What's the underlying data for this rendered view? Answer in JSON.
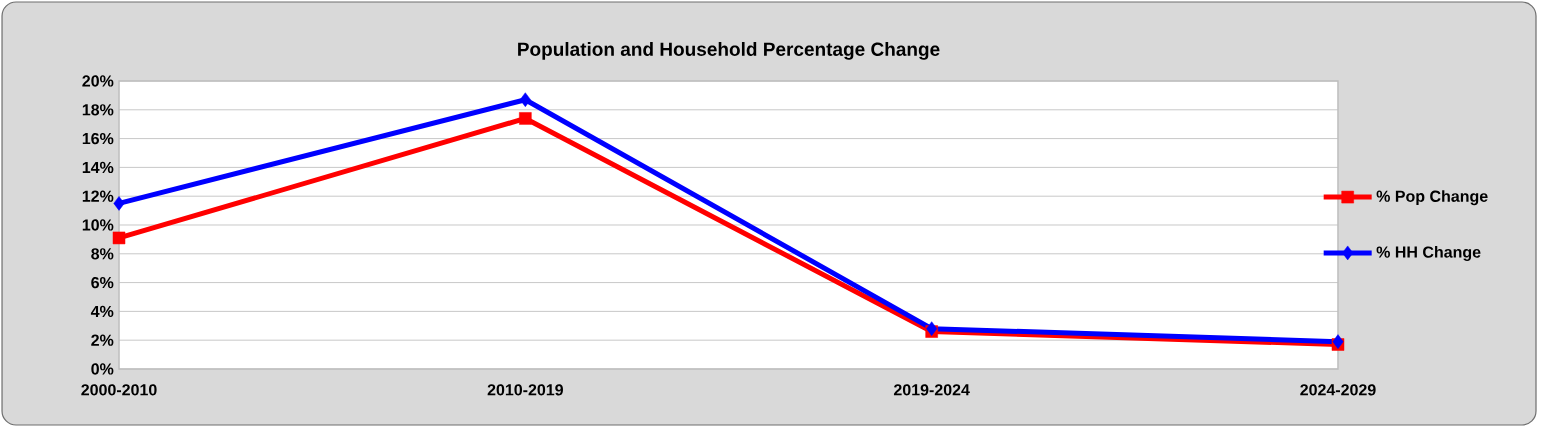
{
  "chart_data": {
    "type": "line",
    "title": "Population and Household Percentage Change",
    "categories": [
      "2000-2010",
      "2010-2019",
      "2019-2024",
      "2024-2029"
    ],
    "series": [
      {
        "name": "% Pop Change",
        "color": "#ff0000",
        "marker": "square",
        "values": [
          9.1,
          17.4,
          2.6,
          1.7
        ]
      },
      {
        "name": "% HH Change",
        "color": "#0000ff",
        "marker": "diamond",
        "values": [
          11.5,
          18.7,
          2.8,
          1.9
        ]
      }
    ],
    "ylim": [
      0,
      20
    ],
    "yticks": [
      {
        "value": 0,
        "label": "0%"
      },
      {
        "value": 2,
        "label": "2%"
      },
      {
        "value": 4,
        "label": "4%"
      },
      {
        "value": 6,
        "label": "6%"
      },
      {
        "value": 8,
        "label": "8%"
      },
      {
        "value": 10,
        "label": "10%"
      },
      {
        "value": 12,
        "label": "12%"
      },
      {
        "value": 14,
        "label": "14%"
      },
      {
        "value": 16,
        "label": "16%"
      },
      {
        "value": 18,
        "label": "18%"
      },
      {
        "value": 20,
        "label": "20%"
      }
    ],
    "grid": "y",
    "legend": "right"
  }
}
